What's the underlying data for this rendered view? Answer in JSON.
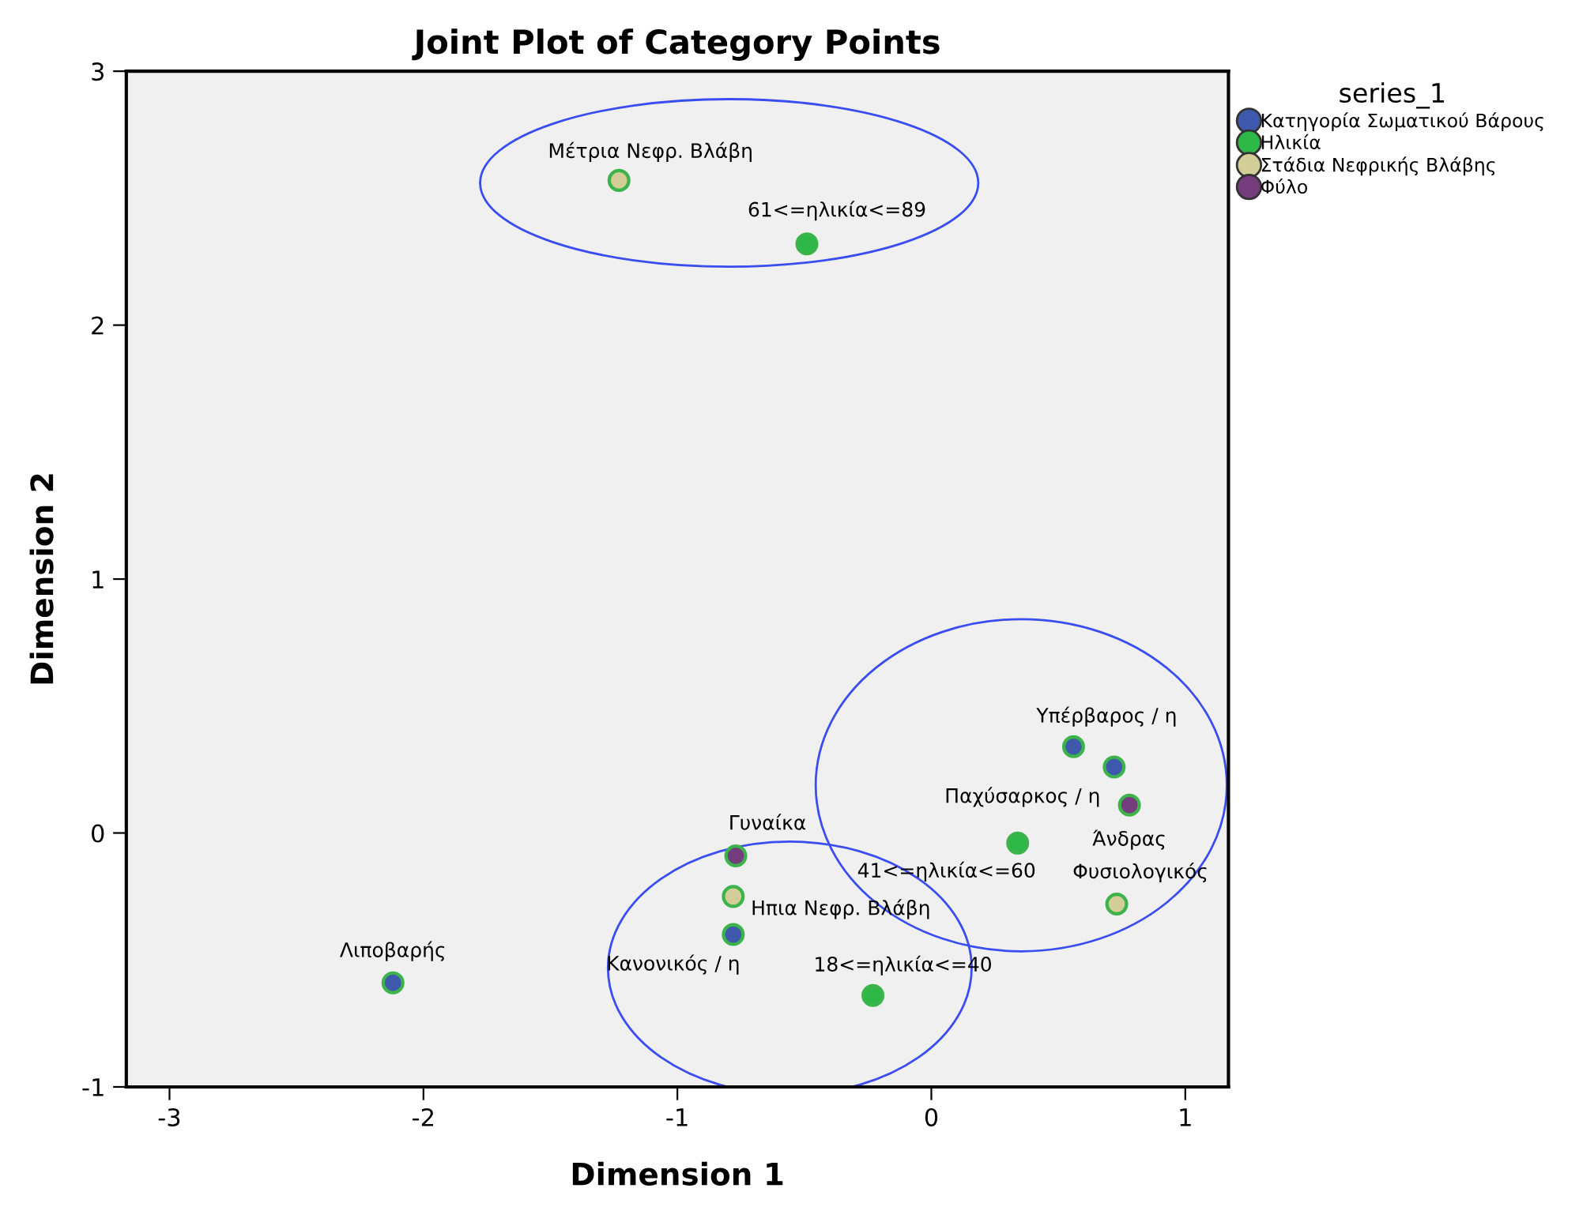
{
  "chart_data": {
    "type": "scatter",
    "title": "Joint Plot of Category Points",
    "xlabel": "Dimension 1",
    "ylabel": "Dimension 2",
    "legend_title": "series_1",
    "legend": "right",
    "marker": "circle",
    "grid": false,
    "xlim": [
      -3.17,
      1.17
    ],
    "ylim": [
      -1,
      3
    ],
    "xticks": [
      -3,
      -2,
      -1,
      0,
      1
    ],
    "yticks": [
      -1,
      0,
      1,
      2,
      3
    ],
    "series": [
      {
        "name": "Κατηγορία Σωματικού Βάρους",
        "color": "#3e58ac",
        "x": [
          -2.12,
          -0.78,
          0.56,
          0.72
        ],
        "values": [
          -0.59,
          -0.4,
          0.34,
          0.26
        ]
      },
      {
        "name": "Ηλικία",
        "color": "#2eb848",
        "x": [
          -0.23,
          0.34,
          -0.49
        ],
        "values": [
          -0.64,
          -0.04,
          2.32
        ]
      },
      {
        "name": "Στάδια Νεφρικής Βλάβης",
        "color": "#d3ce97",
        "x": [
          -0.78,
          0.73,
          -1.23
        ],
        "values": [
          -0.25,
          -0.28,
          2.57
        ]
      },
      {
        "name": "Φύλο",
        "color": "#753c7e",
        "x": [
          -0.77,
          0.78
        ],
        "values": [
          -0.09,
          0.11
        ]
      }
    ],
    "annotations": [
      {
        "text": "Λιποβαρής",
        "x": -2.12,
        "y": -0.59
      },
      {
        "text": "Κανονικός / η",
        "x": -0.78,
        "y": -0.4
      },
      {
        "text": "Υπέρβαρος / η",
        "x": 0.56,
        "y": 0.34
      },
      {
        "text": "Παχύσαρκος / η",
        "x": 0.72,
        "y": 0.26
      },
      {
        "text": "18<=ηλικία<=40",
        "x": -0.23,
        "y": -0.64
      },
      {
        "text": "41<=ηλικία<=60",
        "x": 0.34,
        "y": -0.04
      },
      {
        "text": "61<=ηλικία<=89",
        "x": -0.49,
        "y": 2.32
      },
      {
        "text": "Ηπια Νεφρ. Βλάβη",
        "x": -0.78,
        "y": -0.25
      },
      {
        "text": "Φυσιολογικός",
        "x": 0.73,
        "y": -0.28
      },
      {
        "text": "Μέτρια Νεφρ. Βλάβη",
        "x": -1.23,
        "y": 2.57
      },
      {
        "text": "Γυναίκα",
        "x": -0.77,
        "y": -0.09
      },
      {
        "text": "Άνδρας",
        "x": 0.78,
        "y": 0.11
      }
    ]
  }
}
